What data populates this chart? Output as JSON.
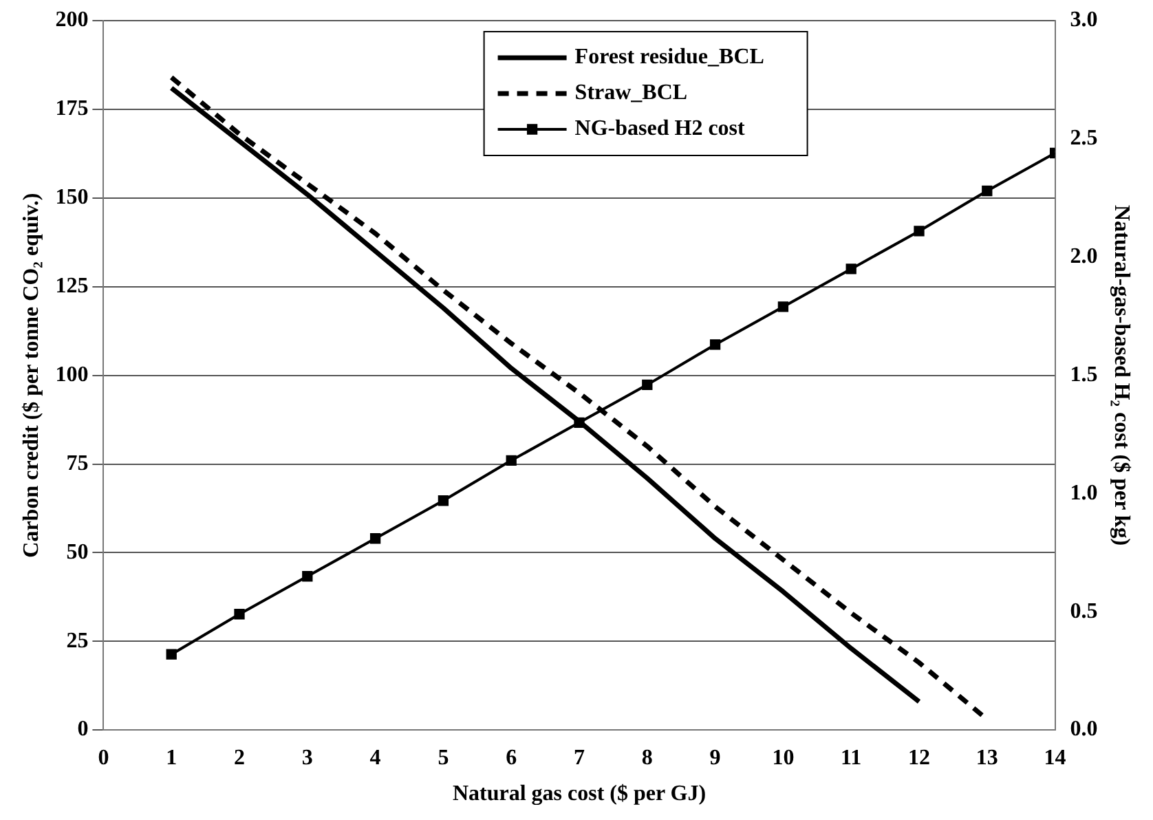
{
  "chart_data": {
    "type": "line",
    "xlabel": "Natural gas cost ($ per GJ)",
    "ylabel": "Carbon credit ($ per tonne CO₂ equiv.)",
    "y2label": "Natural-gas-based H₂ cost ($ per kg)",
    "xlim": [
      0,
      14
    ],
    "xticks": [
      0,
      1,
      2,
      3,
      4,
      5,
      6,
      7,
      8,
      9,
      10,
      11,
      12,
      13,
      14
    ],
    "ylim": [
      0,
      200
    ],
    "yticks": [
      0,
      25,
      50,
      75,
      100,
      125,
      150,
      175,
      200
    ],
    "y2lim": [
      0,
      3
    ],
    "y2ticks": [
      {
        "value": 0,
        "label": "0.0"
      },
      {
        "value": 0.5,
        "label": "0.5"
      },
      {
        "value": 1,
        "label": "1.0"
      },
      {
        "value": 1.5,
        "label": "1.5"
      },
      {
        "value": 2,
        "label": "2.0"
      },
      {
        "value": 2.5,
        "label": "2.5"
      },
      {
        "value": 3,
        "label": "3.0"
      }
    ],
    "grid": "y",
    "legend": "top right",
    "series": [
      {
        "name": "Forest residue_BCL",
        "color": "#000000",
        "line_style": "solid",
        "marker": "none",
        "x": [
          1,
          2,
          3,
          4,
          5,
          6,
          7,
          8,
          9,
          10,
          11,
          12
        ],
        "values": [
          181,
          166,
          151,
          135,
          119,
          102,
          87,
          71,
          54,
          39,
          23,
          8
        ]
      },
      {
        "name": "Straw_BCL",
        "color": "#000000",
        "line_style": "dashed",
        "marker": "none",
        "x": [
          1,
          2,
          3,
          4,
          5,
          6,
          7,
          8,
          9,
          10,
          11,
          12,
          13
        ],
        "values": [
          184,
          168,
          154,
          140,
          124,
          109,
          95,
          80,
          63,
          48,
          33,
          19,
          3
        ]
      },
      {
        "name": "NG-based H2 cost",
        "color": "#000000",
        "line_style": "solid",
        "marker": "square",
        "axis": "y2",
        "x": [
          1,
          2,
          3,
          4,
          5,
          6,
          7,
          8,
          9,
          10,
          11,
          12,
          13,
          14
        ],
        "values": [
          0.32,
          0.49,
          0.65,
          0.81,
          0.97,
          1.14,
          1.3,
          1.46,
          1.63,
          1.79,
          1.95,
          2.11,
          2.28,
          2.44
        ]
      }
    ]
  }
}
